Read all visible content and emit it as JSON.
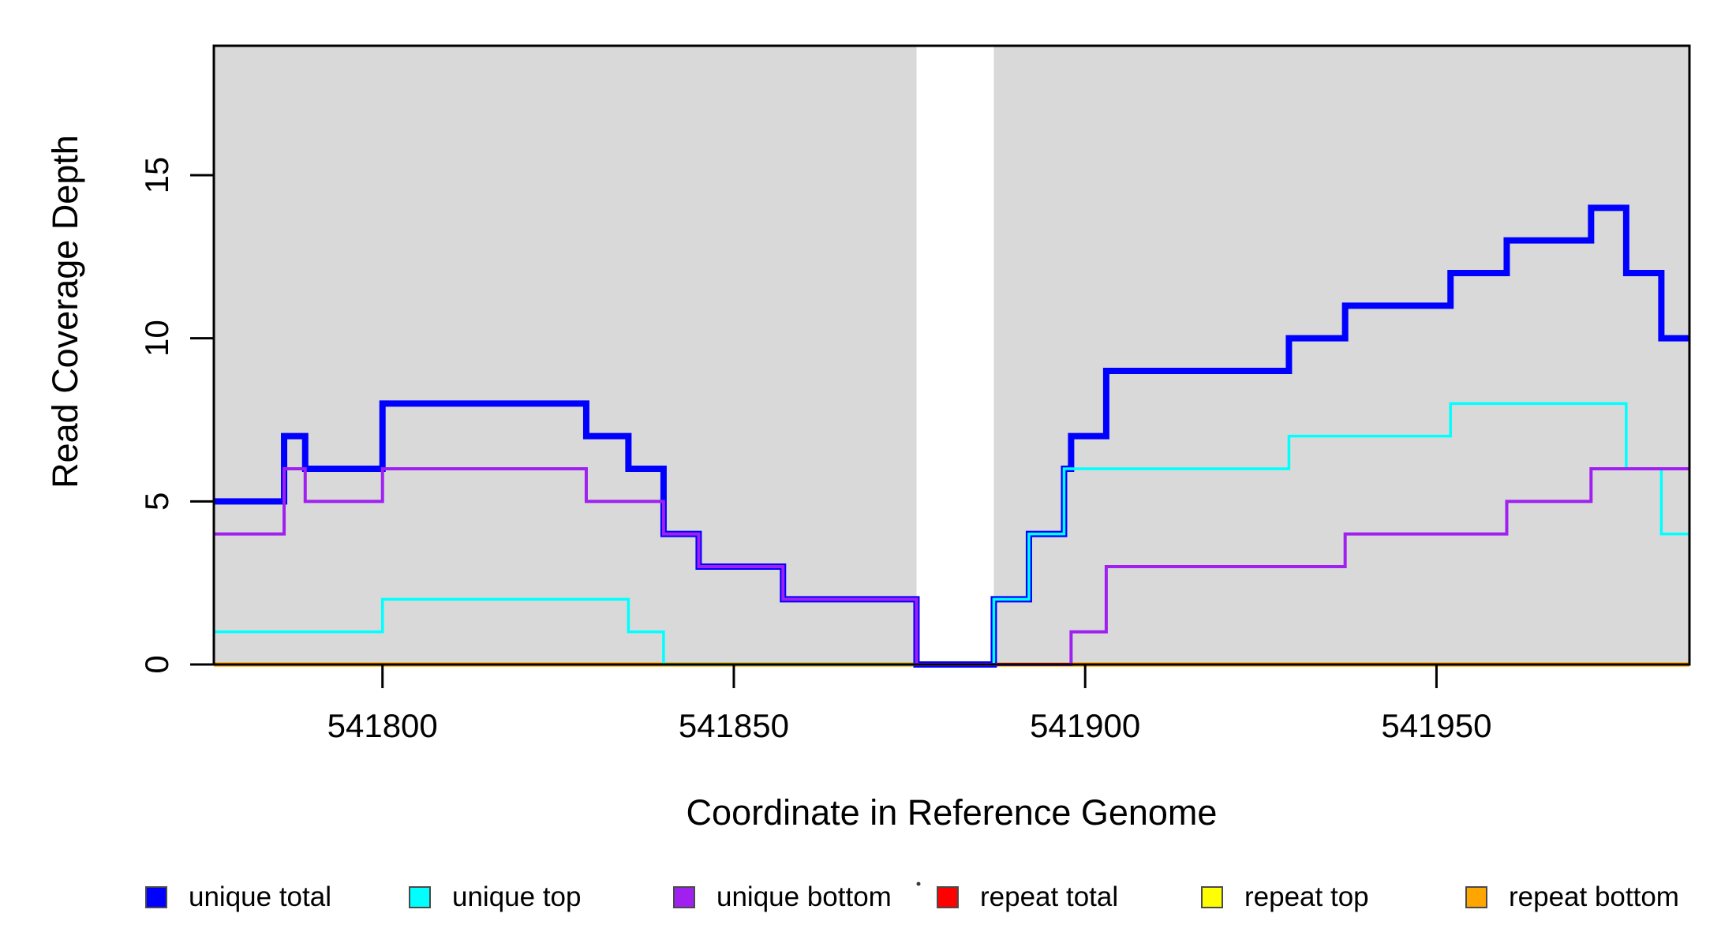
{
  "figure": {
    "background": "#FFFFFF"
  },
  "chart_data": {
    "type": "line",
    "subtype": "step",
    "title": "",
    "xlabel": "Coordinate in Reference Genome",
    "ylabel": "Read Coverage Depth",
    "xlim": [
      541776,
      541986
    ],
    "ylim": [
      0,
      19
    ],
    "x_ticks": [
      541800,
      541850,
      541900,
      541950
    ],
    "y_ticks": [
      0,
      5,
      10,
      15
    ],
    "grid": false,
    "legend_position": "bottom",
    "shading_color": "#D9D9D9",
    "shaded_regions": [
      {
        "x0": 541776,
        "x1": 541876
      },
      {
        "x0": 541887,
        "x1": 541986
      }
    ],
    "step_note": "each step entry is [coordinate, depth holding from that coordinate until the next entry]; all series end at x=541986",
    "series": [
      {
        "name": "repeat total",
        "color": "#FF0000",
        "line_width": 4.5,
        "steps": [
          [
            541776,
            0
          ]
        ]
      },
      {
        "name": "repeat top",
        "color": "#FFFF00",
        "line_width": 4.5,
        "steps": [
          [
            541776,
            0
          ]
        ]
      },
      {
        "name": "repeat bottom",
        "color": "#FFA500",
        "line_width": 5.5,
        "steps": [
          [
            541776,
            0
          ]
        ]
      },
      {
        "name": "unique total",
        "color": "#0000FF",
        "line_width": 8,
        "steps": [
          [
            541776,
            5
          ],
          [
            541786,
            7
          ],
          [
            541789,
            6
          ],
          [
            541800,
            8
          ],
          [
            541829,
            7
          ],
          [
            541835,
            6
          ],
          [
            541840,
            4
          ],
          [
            541845,
            3
          ],
          [
            541857,
            2
          ],
          [
            541876,
            0
          ],
          [
            541887,
            2
          ],
          [
            541892,
            4
          ],
          [
            541897,
            6
          ],
          [
            541898,
            7
          ],
          [
            541903,
            9
          ],
          [
            541929,
            10
          ],
          [
            541937,
            11
          ],
          [
            541952,
            12
          ],
          [
            541960,
            13
          ],
          [
            541972,
            14
          ],
          [
            541977,
            12
          ],
          [
            541982,
            10
          ]
        ]
      },
      {
        "name": "unique top",
        "color": "#00FFFF",
        "line_width": 3.5,
        "steps": [
          [
            541776,
            1
          ],
          [
            541800,
            2
          ],
          [
            541835,
            1
          ],
          [
            541840,
            0
          ],
          [
            541887,
            2
          ],
          [
            541892,
            4
          ],
          [
            541897,
            6
          ],
          [
            541929,
            7
          ],
          [
            541952,
            8
          ],
          [
            541977,
            6
          ],
          [
            541982,
            4
          ]
        ]
      },
      {
        "name": "unique bottom",
        "color": "#A020F0",
        "line_width": 4,
        "steps": [
          [
            541776,
            4
          ],
          [
            541786,
            6
          ],
          [
            541789,
            5
          ],
          [
            541800,
            6
          ],
          [
            541829,
            5
          ],
          [
            541840,
            4
          ],
          [
            541845,
            3
          ],
          [
            541857,
            2
          ],
          [
            541876,
            0
          ],
          [
            541898,
            1
          ],
          [
            541903,
            3
          ],
          [
            541937,
            4
          ],
          [
            541960,
            5
          ],
          [
            541972,
            6
          ]
        ]
      }
    ],
    "legend": {
      "items": [
        {
          "label": "unique total",
          "color": "#0000FF"
        },
        {
          "label": "unique top",
          "color": "#00FFFF"
        },
        {
          "label": "unique bottom",
          "color": "#A020F0"
        },
        {
          "label": "repeat total",
          "color": "#FF0000"
        },
        {
          "label": "repeat top",
          "color": "#FFFF00"
        },
        {
          "label": "repeat bottom",
          "color": "#FFA500"
        }
      ]
    },
    "annotations": {
      "stray_dot": {
        "x": 1164,
        "y": 1120,
        "color": "#3a3a3a"
      }
    }
  }
}
